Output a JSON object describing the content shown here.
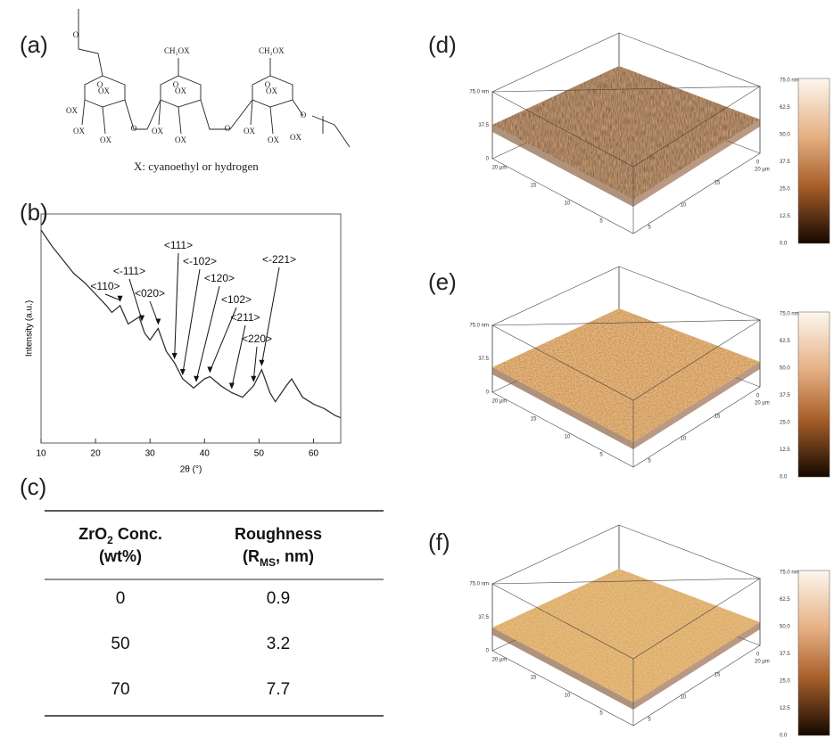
{
  "panels": [
    "(a)",
    "(b)",
    "(c)",
    "(d)",
    "(e)",
    "(f)"
  ],
  "structure": {
    "caption": "X: cyanoethyl or hydrogen",
    "group_side": "CH₂OX",
    "hydroxyl": "OX",
    "ring_oxygen": "O"
  },
  "chart_data": {
    "type": "line",
    "x_label": "2θ (°)",
    "y_label": "Intensity (a.u.)",
    "color": "#333333",
    "x": [
      10,
      12,
      14,
      16,
      18,
      20,
      22,
      23,
      24.5,
      26,
      28,
      29,
      30,
      31.5,
      33,
      34.5,
      36,
      38,
      40,
      41,
      43,
      45,
      47,
      49,
      50.5,
      52,
      53,
      55,
      56,
      58,
      60,
      62,
      64,
      65
    ],
    "values": [
      93,
      86,
      80,
      74,
      70,
      65,
      60,
      57,
      60,
      52,
      55,
      48,
      45,
      50,
      40,
      35,
      28,
      24,
      28,
      29,
      25,
      22,
      20,
      25,
      32,
      22,
      18,
      25,
      28,
      20,
      17,
      15,
      12,
      11
    ],
    "xlim": [
      10,
      65
    ],
    "xticks": [
      10,
      20,
      30,
      40,
      50,
      60
    ],
    "ylim": [
      0,
      100
    ],
    "annotations": [
      {
        "label": "<110>",
        "x": 24.5
      },
      {
        "label": "<-111>",
        "x": 28.5
      },
      {
        "label": "<020>",
        "x": 31.5
      },
      {
        "label": "<111>",
        "x": 34.5
      },
      {
        "label": "<-102>",
        "x": 36
      },
      {
        "label": "<120>",
        "x": 38.5
      },
      {
        "label": "<102>",
        "x": 41
      },
      {
        "label": "<211>",
        "x": 45
      },
      {
        "label": "<220>",
        "x": 49
      },
      {
        "label": "<-221>",
        "x": 50.5
      }
    ]
  },
  "table": {
    "header": [
      {
        "main": "ZrO",
        "sub": "2",
        "rest": " Conc.",
        "line2": "(wt%)"
      },
      {
        "main": "Roughness",
        "line2_main": "(R",
        "sub": "MS",
        "line2_rest": ", nm)"
      }
    ],
    "rows": [
      [
        "0",
        "0.9"
      ],
      [
        "50",
        "3.2"
      ],
      [
        "70",
        "7.7"
      ]
    ]
  },
  "afm": {
    "z_labels": [
      "75.0 nm",
      "37.5",
      "0"
    ],
    "xy_labels": [
      "20 µm",
      "15",
      "10",
      "5"
    ],
    "corner_labels": [
      "0",
      "20 µm"
    ],
    "colorbar": [
      "75.0 nm",
      "62.5",
      "50.0",
      "37.5",
      "25.0",
      "12.5",
      "0.0"
    ]
  }
}
